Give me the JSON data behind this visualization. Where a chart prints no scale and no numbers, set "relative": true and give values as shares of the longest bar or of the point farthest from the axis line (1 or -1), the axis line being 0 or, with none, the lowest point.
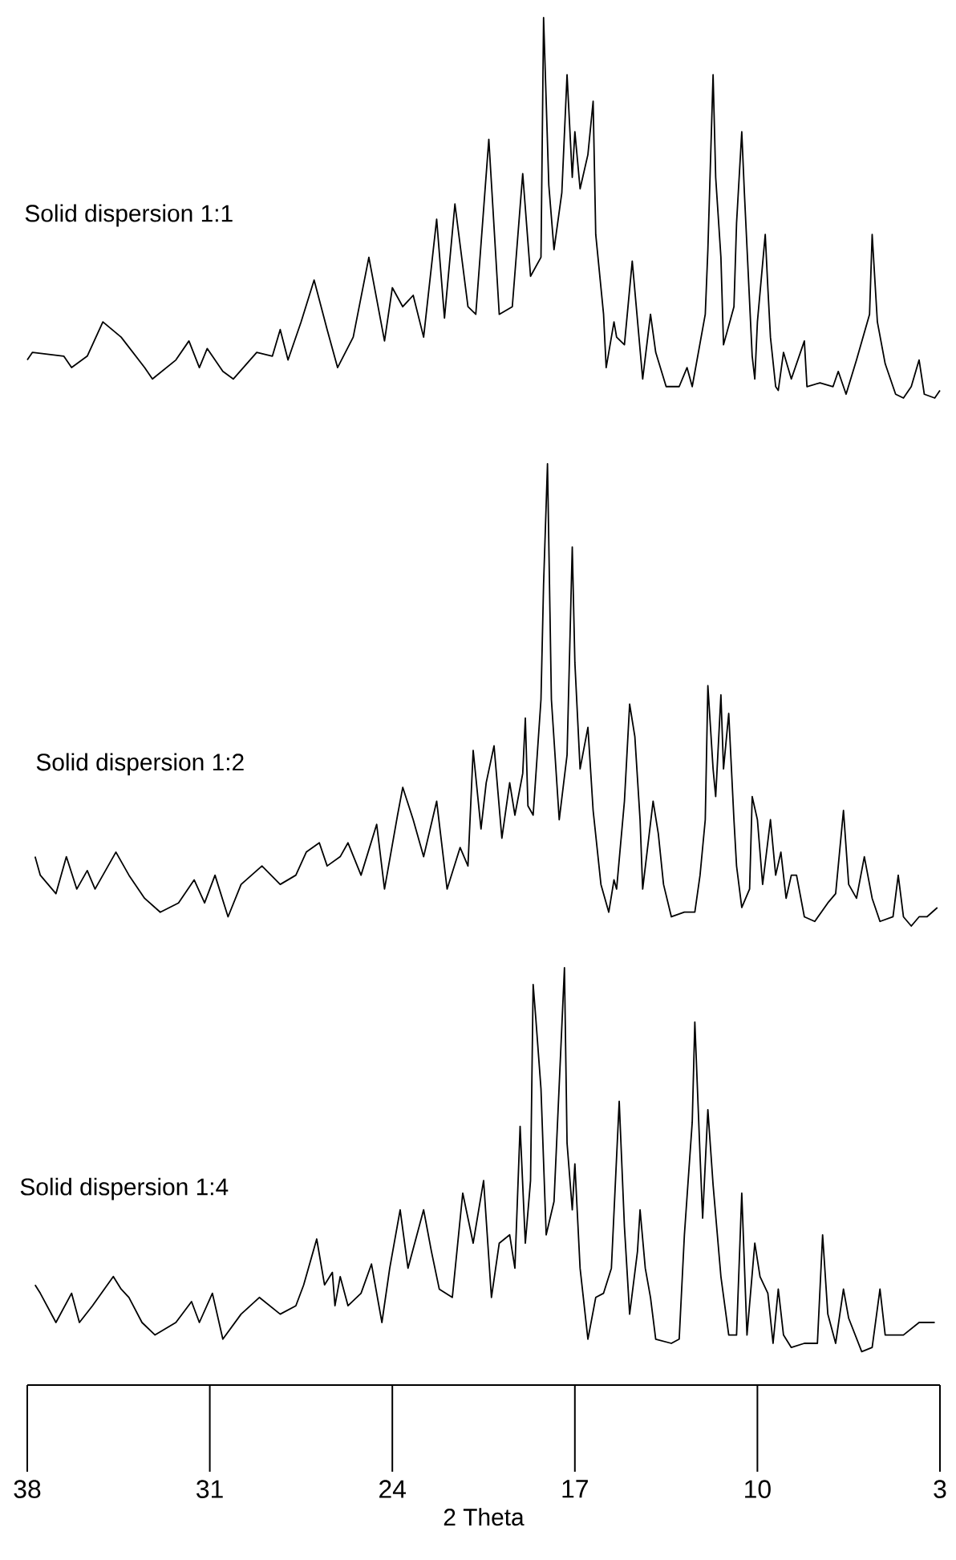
{
  "chart_data": [
    {
      "type": "line",
      "relative": true,
      "xlim": [
        38,
        3
      ],
      "tick_labels": false,
      "series": [
        {
          "name": "Solid dispersion 1:1",
          "color": "#000000",
          "x": [
            38.0,
            37.8,
            36.6,
            36.3,
            35.7,
            35.1,
            34.4,
            33.5,
            33.2,
            32.3,
            31.8,
            31.4,
            31.1,
            30.5,
            30.1,
            29.2,
            28.6,
            28.3,
            28.0,
            27.5,
            27.0,
            26.5,
            26.1,
            25.5,
            24.9,
            24.3,
            24.0,
            23.6,
            23.2,
            22.8,
            22.3,
            22.0,
            21.6,
            21.1,
            20.8,
            20.3,
            19.9,
            19.4,
            19.0,
            18.7,
            18.3,
            18.2,
            18.0,
            17.8,
            17.5,
            17.3,
            17.1,
            17.0,
            16.8,
            16.5,
            16.3,
            16.2,
            15.9,
            15.8,
            15.5,
            15.4,
            15.1,
            14.8,
            14.4,
            14.1,
            13.9,
            13.5,
            13.0,
            12.7,
            12.5,
            12.0,
            11.9,
            11.7,
            11.6,
            11.4,
            11.3,
            10.9,
            10.8,
            10.6,
            10.5,
            10.2,
            10.1,
            10.0,
            9.7,
            9.6,
            9.5,
            9.3,
            9.2,
            9.0,
            8.7,
            8.2,
            8.1,
            7.6,
            7.1,
            6.9,
            6.6,
            6.2,
            5.7,
            5.6,
            5.4,
            5.1,
            4.7,
            4.4,
            4.1,
            3.8,
            3.6,
            3.2,
            3.0
          ],
          "values": [
            0.1,
            0.12,
            0.11,
            0.08,
            0.11,
            0.2,
            0.16,
            0.08,
            0.05,
            0.1,
            0.15,
            0.08,
            0.13,
            0.07,
            0.05,
            0.12,
            0.11,
            0.18,
            0.1,
            0.2,
            0.31,
            0.18,
            0.08,
            0.16,
            0.37,
            0.15,
            0.29,
            0.24,
            0.27,
            0.16,
            0.47,
            0.21,
            0.51,
            0.24,
            0.22,
            0.68,
            0.22,
            0.24,
            0.59,
            0.32,
            0.37,
            1.0,
            0.56,
            0.39,
            0.54,
            0.85,
            0.58,
            0.7,
            0.55,
            0.64,
            0.78,
            0.43,
            0.22,
            0.08,
            0.2,
            0.16,
            0.14,
            0.36,
            0.05,
            0.22,
            0.12,
            0.03,
            0.03,
            0.08,
            0.03,
            0.22,
            0.39,
            0.85,
            0.58,
            0.37,
            0.14,
            0.24,
            0.46,
            0.7,
            0.54,
            0.11,
            0.05,
            0.2,
            0.43,
            0.29,
            0.16,
            0.03,
            0.02,
            0.12,
            0.05,
            0.15,
            0.03,
            0.04,
            0.03,
            0.07,
            0.01,
            0.1,
            0.22,
            0.43,
            0.2,
            0.09,
            0.01,
            0.0,
            0.03,
            0.1,
            0.01,
            0.0,
            0.02
          ]
        }
      ]
    },
    {
      "type": "line",
      "relative": true,
      "xlim": [
        38,
        3
      ],
      "tick_labels": false,
      "series": [
        {
          "name": "Solid dispersion 1:2",
          "color": "#000000",
          "x": [
            37.7,
            37.5,
            36.9,
            36.5,
            36.1,
            35.7,
            35.4,
            34.6,
            34.1,
            33.5,
            32.9,
            32.2,
            31.6,
            31.2,
            30.8,
            30.3,
            29.8,
            29.0,
            28.3,
            27.7,
            27.3,
            26.8,
            26.5,
            26.0,
            25.7,
            25.2,
            24.6,
            24.3,
            23.8,
            23.6,
            23.2,
            22.8,
            22.3,
            21.9,
            21.4,
            21.1,
            20.9,
            20.6,
            20.4,
            20.1,
            19.8,
            19.5,
            19.3,
            19.0,
            18.9,
            18.8,
            18.6,
            18.3,
            18.2,
            18.05,
            17.9,
            17.6,
            17.3,
            17.1,
            17.0,
            16.8,
            16.5,
            16.3,
            16.0,
            15.7,
            15.5,
            15.4,
            15.1,
            14.9,
            14.7,
            14.5,
            14.4,
            14.0,
            13.8,
            13.6,
            13.3,
            12.8,
            12.4,
            12.2,
            12.0,
            11.9,
            11.7,
            11.6,
            11.4,
            11.3,
            11.1,
            10.9,
            10.8,
            10.6,
            10.3,
            10.2,
            10.0,
            9.8,
            9.5,
            9.3,
            9.1,
            8.9,
            8.7,
            8.5,
            8.2,
            7.8,
            7.3,
            7.0,
            6.7,
            6.5,
            6.2,
            5.9,
            5.6,
            5.3,
            4.8,
            4.6,
            4.4,
            4.1,
            3.8,
            3.5,
            3.1
          ],
          "values": [
            0.15,
            0.11,
            0.07,
            0.15,
            0.08,
            0.12,
            0.08,
            0.16,
            0.11,
            0.06,
            0.03,
            0.05,
            0.1,
            0.05,
            0.11,
            0.02,
            0.09,
            0.13,
            0.09,
            0.11,
            0.16,
            0.18,
            0.13,
            0.15,
            0.18,
            0.11,
            0.22,
            0.08,
            0.24,
            0.3,
            0.23,
            0.15,
            0.27,
            0.08,
            0.17,
            0.13,
            0.38,
            0.21,
            0.31,
            0.39,
            0.19,
            0.31,
            0.24,
            0.33,
            0.45,
            0.26,
            0.24,
            0.49,
            0.74,
            1.0,
            0.49,
            0.23,
            0.37,
            0.82,
            0.57,
            0.34,
            0.43,
            0.25,
            0.09,
            0.03,
            0.1,
            0.08,
            0.27,
            0.48,
            0.41,
            0.23,
            0.08,
            0.27,
            0.2,
            0.09,
            0.02,
            0.03,
            0.03,
            0.11,
            0.23,
            0.52,
            0.34,
            0.28,
            0.5,
            0.34,
            0.46,
            0.23,
            0.13,
            0.04,
            0.08,
            0.28,
            0.23,
            0.09,
            0.23,
            0.11,
            0.16,
            0.06,
            0.11,
            0.11,
            0.02,
            0.01,
            0.05,
            0.07,
            0.25,
            0.09,
            0.06,
            0.15,
            0.06,
            0.01,
            0.02,
            0.11,
            0.02,
            0.0,
            0.02,
            0.02,
            0.04
          ]
        }
      ]
    },
    {
      "type": "line",
      "relative": true,
      "xlim": [
        38,
        3
      ],
      "xticks": [
        38,
        31,
        24,
        17,
        10,
        3
      ],
      "xlabel": "2 Theta",
      "tick_labels": "x",
      "series": [
        {
          "name": "Solid dispersion 1:4",
          "color": "#000000",
          "x": [
            37.7,
            37.5,
            36.9,
            36.3,
            36.0,
            35.5,
            34.7,
            34.4,
            34.1,
            33.6,
            33.1,
            32.3,
            31.7,
            31.4,
            30.9,
            30.5,
            29.8,
            29.1,
            28.3,
            27.7,
            27.4,
            26.9,
            26.6,
            26.3,
            26.2,
            26.0,
            25.7,
            25.2,
            24.8,
            24.4,
            24.1,
            23.7,
            23.4,
            22.8,
            22.5,
            22.2,
            21.7,
            21.3,
            20.9,
            20.5,
            20.2,
            19.9,
            19.5,
            19.3,
            19.1,
            18.9,
            18.7,
            18.6,
            18.5,
            18.3,
            18.1,
            17.8,
            17.4,
            17.3,
            17.1,
            17.0,
            16.8,
            16.5,
            16.2,
            15.9,
            15.6,
            15.3,
            15.1,
            14.9,
            14.6,
            14.5,
            14.3,
            14.1,
            13.9,
            13.3,
            13.0,
            12.8,
            12.5,
            12.4,
            12.2,
            12.1,
            11.9,
            11.7,
            11.4,
            11.1,
            10.8,
            10.6,
            10.4,
            10.1,
            9.9,
            9.6,
            9.4,
            9.2,
            9.0,
            8.7,
            8.2,
            7.7,
            7.5,
            7.3,
            7.0,
            6.7,
            6.5,
            6.0,
            5.6,
            5.3,
            5.1,
            4.8,
            4.4,
            3.8,
            3.2
          ],
          "values": [
            0.24,
            0.22,
            0.15,
            0.22,
            0.15,
            0.19,
            0.26,
            0.23,
            0.21,
            0.15,
            0.12,
            0.15,
            0.2,
            0.15,
            0.22,
            0.11,
            0.17,
            0.21,
            0.17,
            0.19,
            0.24,
            0.35,
            0.24,
            0.27,
            0.19,
            0.26,
            0.19,
            0.22,
            0.29,
            0.15,
            0.28,
            0.42,
            0.28,
            0.42,
            0.32,
            0.23,
            0.21,
            0.46,
            0.34,
            0.49,
            0.21,
            0.34,
            0.36,
            0.28,
            0.62,
            0.34,
            0.49,
            0.96,
            0.88,
            0.71,
            0.36,
            0.44,
            1.0,
            0.58,
            0.42,
            0.53,
            0.28,
            0.11,
            0.21,
            0.22,
            0.28,
            0.68,
            0.38,
            0.17,
            0.32,
            0.42,
            0.28,
            0.21,
            0.11,
            0.1,
            0.11,
            0.36,
            0.63,
            0.87,
            0.55,
            0.4,
            0.66,
            0.48,
            0.26,
            0.12,
            0.12,
            0.46,
            0.12,
            0.34,
            0.26,
            0.22,
            0.1,
            0.23,
            0.12,
            0.09,
            0.1,
            0.1,
            0.36,
            0.17,
            0.1,
            0.23,
            0.16,
            0.08,
            0.09,
            0.23,
            0.12,
            0.12,
            0.12,
            0.15,
            0.15
          ]
        }
      ]
    }
  ]
}
